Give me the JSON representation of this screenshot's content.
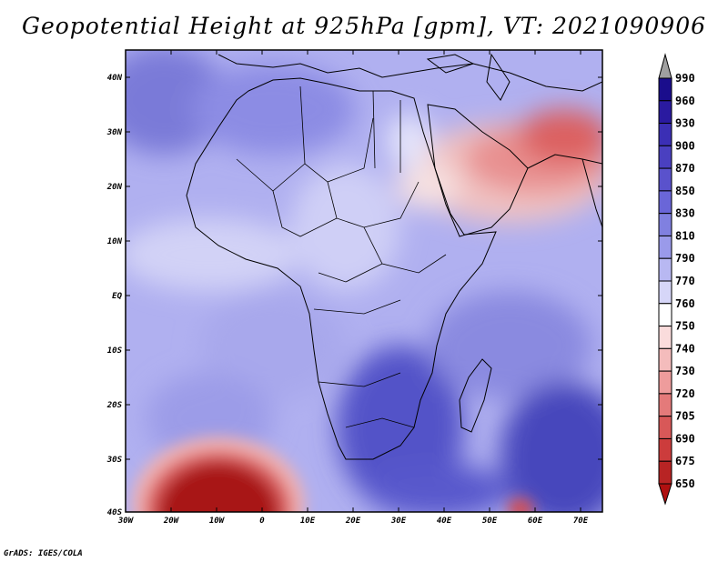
{
  "title": "Geopotential Height at 925hPa [gpm], VT: 2021090906",
  "credit": "GrADS: IGES/COLA",
  "axes": {
    "lat_ticks": [
      "40N",
      "30N",
      "20N",
      "10N",
      "EQ",
      "10S",
      "20S",
      "30S",
      "40S"
    ],
    "lon_ticks": [
      "30W",
      "20W",
      "10W",
      "0",
      "10E",
      "20E",
      "30E",
      "40E",
      "50E",
      "60E",
      "70E"
    ]
  },
  "legend": {
    "levels": [
      {
        "label": "990",
        "color": "#1a0d8c"
      },
      {
        "label": "960",
        "color": "#2a1aa0"
      },
      {
        "label": "930",
        "color": "#3b2fb5"
      },
      {
        "label": "900",
        "color": "#4a40c0"
      },
      {
        "label": "870",
        "color": "#5a52cc"
      },
      {
        "label": "850",
        "color": "#6a66d8"
      },
      {
        "label": "830",
        "color": "#8080e0"
      },
      {
        "label": "810",
        "color": "#9a9aea"
      },
      {
        "label": "790",
        "color": "#b8b8f2"
      },
      {
        "label": "770",
        "color": "#d6d6f8"
      },
      {
        "label": "760",
        "color": "#ffffff"
      },
      {
        "label": "750",
        "color": "#fadcdc"
      },
      {
        "label": "740",
        "color": "#f4bcbc"
      },
      {
        "label": "730",
        "color": "#ee9c9c"
      },
      {
        "label": "720",
        "color": "#e47a7a"
      },
      {
        "label": "705",
        "color": "#d85858"
      },
      {
        "label": "690",
        "color": "#cc3c3c"
      },
      {
        "label": "675",
        "color": "#b82424"
      },
      {
        "label": "650",
        "color": "#a01616"
      }
    ],
    "over_color": "#a0a0a0",
    "under_color": "#b01010"
  }
}
